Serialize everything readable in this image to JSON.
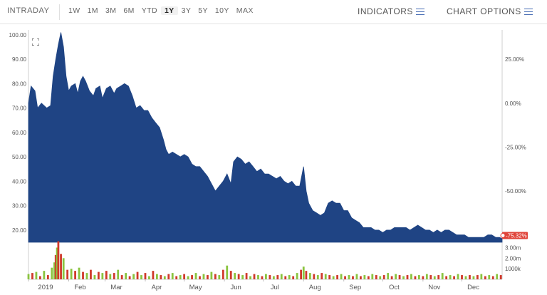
{
  "toolbar": {
    "intraday": "INTRADAY",
    "ranges": [
      "1W",
      "1M",
      "3M",
      "6M",
      "YTD",
      "1Y",
      "3Y",
      "5Y",
      "10Y",
      "MAX"
    ],
    "active_range": "1Y",
    "indicators_label": "INDICATORS",
    "chart_options_label": "CHART OPTIONS"
  },
  "colors": {
    "area": "#1f4484",
    "accent": "#4a6fb5",
    "up": "#8ac43f",
    "down": "#d0392b",
    "badge": "#e0443a"
  },
  "icons": [
    "expand-icon",
    "hamburger-icon"
  ],
  "chart_data": {
    "type": "area",
    "ylim": [
      15,
      102
    ],
    "y_ticks": [
      "100.00",
      "90.00",
      "80.00",
      "70.00",
      "60.00",
      "50.00",
      "40.00",
      "30.00",
      "20.00"
    ],
    "pct_ticks": [
      "25.00%",
      "0.00%",
      "-25.00%",
      "-50.00%"
    ],
    "last_pct": "-75.32%",
    "volume_ticks": [
      "3.00m",
      "2.00m",
      "1000k"
    ],
    "x_ticks": [
      "2019",
      "Feb",
      "Mar",
      "Apr",
      "May",
      "Jun",
      "Jul",
      "Aug",
      "Sep",
      "Oct",
      "Nov",
      "Dec"
    ],
    "x_tick_days": [
      0,
      31,
      59,
      90,
      120,
      151,
      181,
      212,
      243,
      273,
      304,
      334
    ],
    "x_range": [
      0,
      365
    ],
    "price": [
      [
        0,
        72
      ],
      [
        2,
        79
      ],
      [
        5,
        77
      ],
      [
        7,
        70
      ],
      [
        10,
        72
      ],
      [
        14,
        70
      ],
      [
        17,
        71
      ],
      [
        19,
        83
      ],
      [
        21,
        90
      ],
      [
        23,
        96
      ],
      [
        25,
        101
      ],
      [
        27,
        95
      ],
      [
        29,
        83
      ],
      [
        31,
        77
      ],
      [
        33,
        79
      ],
      [
        36,
        80
      ],
      [
        38,
        76
      ],
      [
        40,
        81
      ],
      [
        42,
        83
      ],
      [
        44,
        81
      ],
      [
        47,
        77
      ],
      [
        50,
        75
      ],
      [
        52,
        78
      ],
      [
        55,
        79
      ],
      [
        57,
        74
      ],
      [
        60,
        78
      ],
      [
        63,
        79
      ],
      [
        66,
        76
      ],
      [
        68,
        78
      ],
      [
        71,
        79
      ],
      [
        74,
        80
      ],
      [
        77,
        79
      ],
      [
        80,
        75
      ],
      [
        83,
        70
      ],
      [
        86,
        71
      ],
      [
        89,
        69
      ],
      [
        92,
        69
      ],
      [
        95,
        66
      ],
      [
        98,
        64
      ],
      [
        101,
        62
      ],
      [
        104,
        57
      ],
      [
        106,
        53
      ],
      [
        108,
        51
      ],
      [
        111,
        52
      ],
      [
        114,
        51
      ],
      [
        117,
        50
      ],
      [
        120,
        51
      ],
      [
        123,
        50
      ],
      [
        126,
        47
      ],
      [
        129,
        46
      ],
      [
        132,
        46
      ],
      [
        135,
        44
      ],
      [
        138,
        42
      ],
      [
        141,
        39
      ],
      [
        144,
        36
      ],
      [
        147,
        38
      ],
      [
        150,
        40
      ],
      [
        153,
        43
      ],
      [
        156,
        39
      ],
      [
        158,
        48
      ],
      [
        161,
        50
      ],
      [
        164,
        49
      ],
      [
        167,
        47
      ],
      [
        170,
        48
      ],
      [
        173,
        46
      ],
      [
        176,
        44
      ],
      [
        179,
        45
      ],
      [
        182,
        43
      ],
      [
        185,
        43
      ],
      [
        188,
        42
      ],
      [
        191,
        41
      ],
      [
        194,
        42
      ],
      [
        197,
        40
      ],
      [
        200,
        39
      ],
      [
        203,
        40
      ],
      [
        206,
        38
      ],
      [
        209,
        38
      ],
      [
        212,
        46
      ],
      [
        214,
        36
      ],
      [
        216,
        31
      ],
      [
        219,
        28
      ],
      [
        222,
        27
      ],
      [
        225,
        26
      ],
      [
        228,
        27
      ],
      [
        231,
        31
      ],
      [
        234,
        32
      ],
      [
        237,
        31
      ],
      [
        240,
        31
      ],
      [
        243,
        28
      ],
      [
        246,
        28
      ],
      [
        249,
        25
      ],
      [
        252,
        24
      ],
      [
        255,
        23
      ],
      [
        258,
        21
      ],
      [
        261,
        21
      ],
      [
        264,
        21
      ],
      [
        267,
        20
      ],
      [
        270,
        20
      ],
      [
        273,
        19
      ],
      [
        276,
        20
      ],
      [
        279,
        20
      ],
      [
        282,
        21
      ],
      [
        285,
        21
      ],
      [
        288,
        21
      ],
      [
        291,
        21
      ],
      [
        294,
        20
      ],
      [
        297,
        21
      ],
      [
        300,
        22
      ],
      [
        303,
        21
      ],
      [
        306,
        20
      ],
      [
        309,
        20
      ],
      [
        312,
        19
      ],
      [
        315,
        20
      ],
      [
        318,
        19
      ],
      [
        321,
        20
      ],
      [
        324,
        20
      ],
      [
        327,
        19
      ],
      [
        330,
        18
      ],
      [
        333,
        18
      ],
      [
        336,
        18
      ],
      [
        339,
        17
      ],
      [
        342,
        17
      ],
      [
        345,
        17
      ],
      [
        348,
        17
      ],
      [
        351,
        17
      ],
      [
        354,
        18
      ],
      [
        357,
        18
      ],
      [
        360,
        17
      ],
      [
        363,
        17
      ],
      [
        365,
        16.5
      ]
    ],
    "volume_m": [
      [
        0,
        0.5,
        1
      ],
      [
        3,
        0.6,
        0
      ],
      [
        6,
        0.7,
        1
      ],
      [
        9,
        0.3,
        0
      ],
      [
        12,
        0.8,
        1
      ],
      [
        15,
        0.4,
        0
      ],
      [
        18,
        1.1,
        1
      ],
      [
        20,
        1.6,
        1
      ],
      [
        21,
        2.3,
        0
      ],
      [
        22,
        3.0,
        1
      ],
      [
        23,
        3.6,
        0
      ],
      [
        25,
        2.4,
        0
      ],
      [
        27,
        2.0,
        1
      ],
      [
        30,
        0.9,
        0
      ],
      [
        33,
        1.0,
        1
      ],
      [
        36,
        0.8,
        0
      ],
      [
        39,
        1.1,
        1
      ],
      [
        42,
        0.7,
        0
      ],
      [
        45,
        0.6,
        1
      ],
      [
        48,
        0.9,
        0
      ],
      [
        51,
        0.4,
        1
      ],
      [
        54,
        0.7,
        0
      ],
      [
        57,
        0.6,
        1
      ],
      [
        60,
        0.8,
        0
      ],
      [
        63,
        0.5,
        1
      ],
      [
        66,
        0.6,
        0
      ],
      [
        69,
        0.9,
        1
      ],
      [
        72,
        0.4,
        0
      ],
      [
        75,
        0.6,
        1
      ],
      [
        78,
        0.3,
        0
      ],
      [
        81,
        0.5,
        1
      ],
      [
        84,
        0.7,
        0
      ],
      [
        87,
        0.4,
        1
      ],
      [
        90,
        0.6,
        0
      ],
      [
        93,
        0.3,
        1
      ],
      [
        96,
        0.8,
        0
      ],
      [
        99,
        0.5,
        1
      ],
      [
        102,
        0.4,
        0
      ],
      [
        105,
        0.3,
        1
      ],
      [
        108,
        0.5,
        0
      ],
      [
        111,
        0.6,
        1
      ],
      [
        114,
        0.3,
        0
      ],
      [
        117,
        0.4,
        1
      ],
      [
        120,
        0.5,
        0
      ],
      [
        123,
        0.3,
        1
      ],
      [
        126,
        0.4,
        0
      ],
      [
        129,
        0.6,
        1
      ],
      [
        132,
        0.3,
        0
      ],
      [
        135,
        0.5,
        1
      ],
      [
        138,
        0.4,
        0
      ],
      [
        141,
        0.7,
        1
      ],
      [
        144,
        0.5,
        0
      ],
      [
        147,
        0.4,
        1
      ],
      [
        150,
        0.9,
        0
      ],
      [
        153,
        1.3,
        1
      ],
      [
        156,
        0.8,
        0
      ],
      [
        159,
        0.6,
        1
      ],
      [
        162,
        0.5,
        0
      ],
      [
        165,
        0.4,
        1
      ],
      [
        168,
        0.6,
        0
      ],
      [
        171,
        0.3,
        1
      ],
      [
        174,
        0.5,
        0
      ],
      [
        177,
        0.4,
        1
      ],
      [
        180,
        0.3,
        0
      ],
      [
        183,
        0.5,
        1
      ],
      [
        186,
        0.4,
        0
      ],
      [
        189,
        0.3,
        1
      ],
      [
        192,
        0.4,
        0
      ],
      [
        195,
        0.5,
        1
      ],
      [
        198,
        0.3,
        0
      ],
      [
        201,
        0.4,
        1
      ],
      [
        204,
        0.3,
        0
      ],
      [
        207,
        0.6,
        1
      ],
      [
        210,
        0.9,
        0
      ],
      [
        212,
        1.2,
        1
      ],
      [
        214,
        0.8,
        0
      ],
      [
        217,
        0.6,
        1
      ],
      [
        220,
        0.5,
        0
      ],
      [
        223,
        0.4,
        1
      ],
      [
        226,
        0.6,
        0
      ],
      [
        229,
        0.5,
        1
      ],
      [
        232,
        0.4,
        0
      ],
      [
        235,
        0.3,
        1
      ],
      [
        238,
        0.4,
        0
      ],
      [
        241,
        0.5,
        1
      ],
      [
        244,
        0.3,
        0
      ],
      [
        247,
        0.4,
        1
      ],
      [
        250,
        0.3,
        0
      ],
      [
        253,
        0.5,
        1
      ],
      [
        256,
        0.3,
        0
      ],
      [
        259,
        0.4,
        1
      ],
      [
        262,
        0.3,
        0
      ],
      [
        265,
        0.5,
        1
      ],
      [
        268,
        0.4,
        0
      ],
      [
        271,
        0.3,
        1
      ],
      [
        274,
        0.4,
        0
      ],
      [
        277,
        0.6,
        1
      ],
      [
        280,
        0.3,
        0
      ],
      [
        283,
        0.5,
        1
      ],
      [
        286,
        0.4,
        0
      ],
      [
        289,
        0.3,
        1
      ],
      [
        292,
        0.4,
        0
      ],
      [
        295,
        0.5,
        1
      ],
      [
        298,
        0.3,
        0
      ],
      [
        301,
        0.4,
        1
      ],
      [
        304,
        0.3,
        0
      ],
      [
        307,
        0.5,
        1
      ],
      [
        310,
        0.4,
        0
      ],
      [
        313,
        0.3,
        1
      ],
      [
        316,
        0.4,
        0
      ],
      [
        319,
        0.6,
        1
      ],
      [
        322,
        0.3,
        0
      ],
      [
        325,
        0.4,
        1
      ],
      [
        328,
        0.3,
        0
      ],
      [
        331,
        0.5,
        1
      ],
      [
        334,
        0.4,
        0
      ],
      [
        337,
        0.3,
        1
      ],
      [
        340,
        0.4,
        0
      ],
      [
        343,
        0.3,
        1
      ],
      [
        346,
        0.4,
        0
      ],
      [
        349,
        0.5,
        1
      ],
      [
        352,
        0.3,
        0
      ],
      [
        355,
        0.4,
        1
      ],
      [
        358,
        0.3,
        0
      ],
      [
        361,
        0.5,
        1
      ],
      [
        364,
        0.4,
        0
      ]
    ]
  }
}
